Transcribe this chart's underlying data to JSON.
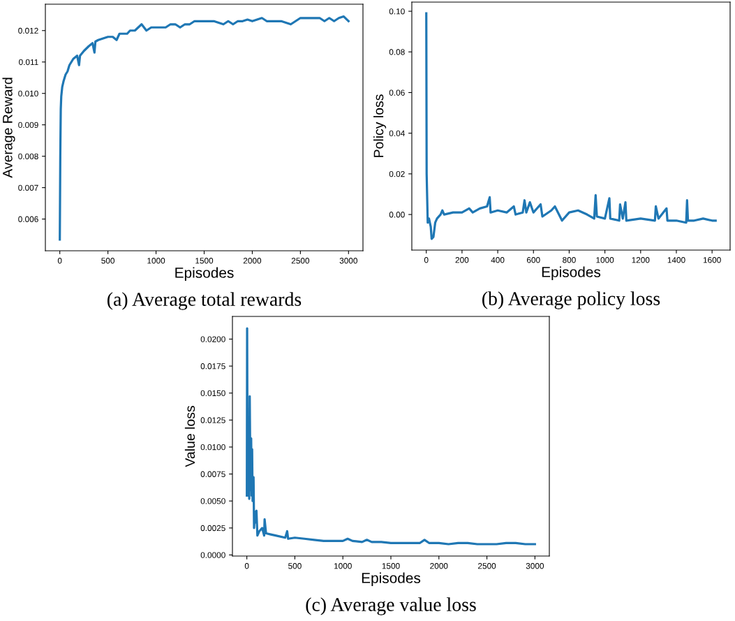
{
  "chart_data": [
    {
      "type": "line",
      "xlabel": "Episodes",
      "ylabel": "Average Reward",
      "annotations": [
        "(a) Average total rewards"
      ],
      "xlim": [
        -150,
        3150
      ],
      "ylim": [
        0.00499,
        0.01284
      ],
      "xticks": [
        0,
        500,
        1000,
        1500,
        2000,
        2500,
        3000
      ],
      "yticks": [
        0.006,
        0.007,
        0.008,
        0.009,
        {
          "value": 0.01,
          "label": "0.010"
        },
        0.011,
        0.012
      ],
      "series": [
        {
          "color": "#1f77b4",
          "x": [
            0,
            5,
            10,
            15,
            25,
            40,
            60,
            80,
            100,
            120,
            140,
            160,
            180,
            200,
            210,
            250,
            300,
            340,
            360,
            370,
            400,
            450,
            500,
            550,
            590,
            620,
            700,
            730,
            780,
            850,
            900,
            950,
            1000,
            1050,
            1100,
            1150,
            1200,
            1250,
            1300,
            1350,
            1400,
            1450,
            1500,
            1550,
            1600,
            1700,
            1750,
            1800,
            1850,
            1900,
            1950,
            2000,
            2050,
            2100,
            2150,
            2200,
            2300,
            2400,
            2450,
            2500,
            2550,
            2600,
            2700,
            2750,
            2800,
            2850,
            2900,
            2950,
            3000
          ],
          "values": [
            0.00535,
            0.008,
            0.0095,
            0.0099,
            0.0102,
            0.0104,
            0.0106,
            0.0107,
            0.0109,
            0.011,
            0.0111,
            0.01115,
            0.0112,
            0.0109,
            0.0112,
            0.01135,
            0.0115,
            0.0116,
            0.0113,
            0.01165,
            0.0117,
            0.01175,
            0.0118,
            0.0118,
            0.0117,
            0.0119,
            0.0119,
            0.012,
            0.012,
            0.0122,
            0.012,
            0.0121,
            0.0121,
            0.0121,
            0.0121,
            0.0122,
            0.0122,
            0.0121,
            0.0122,
            0.0122,
            0.0123,
            0.0123,
            0.0123,
            0.0123,
            0.0123,
            0.0122,
            0.0123,
            0.0122,
            0.0123,
            0.0123,
            0.01235,
            0.0123,
            0.01235,
            0.0124,
            0.0123,
            0.0123,
            0.0123,
            0.0122,
            0.0123,
            0.0124,
            0.0124,
            0.0124,
            0.0124,
            0.0123,
            0.0124,
            0.0123,
            0.0124,
            0.01245,
            0.0123
          ]
        }
      ]
    },
    {
      "type": "line",
      "xlabel": "Episodes",
      "ylabel": "Policy loss",
      "annotations": [
        "(b) Average policy loss"
      ],
      "xlim": [
        -81,
        1701
      ],
      "ylim": [
        -0.0175,
        0.1045
      ],
      "xticks": [
        0,
        200,
        400,
        600,
        800,
        1000,
        1200,
        1400,
        1600
      ],
      "yticks": [
        {
          "value": 0,
          "label": "0.00"
        },
        {
          "value": 0.02,
          "label": "0.02"
        },
        {
          "value": 0.04,
          "label": "0.04"
        },
        {
          "value": 0.06,
          "label": "0.06"
        },
        {
          "value": 0.08,
          "label": "0.08"
        },
        {
          "value": 0.1,
          "label": "0.10"
        }
      ],
      "series": [
        {
          "color": "#1f77b4",
          "x": [
            0,
            2,
            8,
            15,
            25,
            30,
            40,
            50,
            60,
            80,
            90,
            100,
            150,
            200,
            240,
            260,
            300,
            340,
            355,
            360,
            400,
            450,
            490,
            500,
            540,
            550,
            560,
            580,
            600,
            640,
            650,
            700,
            720,
            760,
            800,
            850,
            900,
            940,
            948,
            955,
            1000,
            1025,
            1030,
            1080,
            1085,
            1100,
            1115,
            1120,
            1200,
            1280,
            1285,
            1300,
            1345,
            1350,
            1400,
            1455,
            1460,
            1465,
            1500,
            1550,
            1600,
            1620
          ],
          "values": [
            0.099,
            0.02,
            -0.004,
            -0.002,
            -0.006,
            -0.012,
            -0.011,
            -0.004,
            -0.002,
            0.0,
            0.002,
            0.0,
            0.001,
            0.001,
            0.003,
            0.001,
            0.003,
            0.004,
            0.0085,
            0.001,
            0.002,
            0.001,
            0.004,
            0.0,
            0.001,
            0.007,
            0.001,
            0.006,
            0.001,
            0.005,
            -0.001,
            0.002,
            0.004,
            -0.003,
            0.001,
            0.002,
            0.0,
            -0.002,
            0.0095,
            -0.001,
            -0.002,
            0.008,
            -0.002,
            -0.003,
            0.005,
            -0.002,
            0.006,
            -0.003,
            -0.002,
            -0.003,
            0.004,
            -0.002,
            0.003,
            -0.003,
            -0.003,
            -0.004,
            0.007,
            -0.003,
            -0.003,
            -0.002,
            -0.003,
            -0.003
          ]
        }
      ]
    },
    {
      "type": "line",
      "xlabel": "Episodes",
      "ylabel": "Value loss",
      "annotations": [
        "(c) Average value loss"
      ],
      "xlim": [
        -150,
        3150
      ],
      "ylim": [
        -0.0001,
        0.0221
      ],
      "xticks": [
        0,
        500,
        1000,
        1500,
        2000,
        2500,
        3000
      ],
      "yticks": [
        {
          "value": 0,
          "label": "0.0000"
        },
        {
          "value": 0.0025,
          "label": "0.0025"
        },
        {
          "value": 0.005,
          "label": "0.0050"
        },
        {
          "value": 0.0075,
          "label": "0.0075"
        },
        {
          "value": 0.01,
          "label": "0.0100"
        },
        {
          "value": 0.0125,
          "label": "0.0125"
        },
        {
          "value": 0.015,
          "label": "0.0150"
        },
        {
          "value": 0.0175,
          "label": "0.0175"
        },
        {
          "value": 0.02,
          "label": "0.0200"
        }
      ],
      "series": [
        {
          "color": "#1f77b4",
          "x": [
            0,
            3,
            8,
            20,
            25,
            30,
            38,
            45,
            50,
            55,
            60,
            70,
            75,
            85,
            95,
            100,
            110,
            130,
            160,
            180,
            185,
            200,
            250,
            300,
            400,
            420,
            430,
            500,
            600,
            700,
            800,
            900,
            1000,
            1050,
            1100,
            1200,
            1250,
            1300,
            1400,
            1500,
            1600,
            1700,
            1800,
            1850,
            1900,
            2000,
            2100,
            2200,
            2300,
            2400,
            2500,
            2600,
            2700,
            2800,
            2900,
            3000
          ],
          "values": [
            0.0055,
            0.021,
            0.0055,
            0.0125,
            0.0052,
            0.0147,
            0.006,
            0.0108,
            0.0055,
            0.0098,
            0.005,
            0.0072,
            0.0025,
            0.004,
            0.003,
            0.0041,
            0.0018,
            0.0022,
            0.0025,
            0.0018,
            0.0033,
            0.002,
            0.0019,
            0.0018,
            0.0016,
            0.0022,
            0.0015,
            0.0016,
            0.0015,
            0.0014,
            0.0013,
            0.0013,
            0.0013,
            0.0015,
            0.0013,
            0.0012,
            0.0014,
            0.0012,
            0.0012,
            0.0011,
            0.0011,
            0.0011,
            0.0011,
            0.0014,
            0.0011,
            0.0011,
            0.001,
            0.0011,
            0.0011,
            0.001,
            0.001,
            0.001,
            0.0011,
            0.0011,
            0.001,
            0.001
          ]
        }
      ]
    }
  ]
}
